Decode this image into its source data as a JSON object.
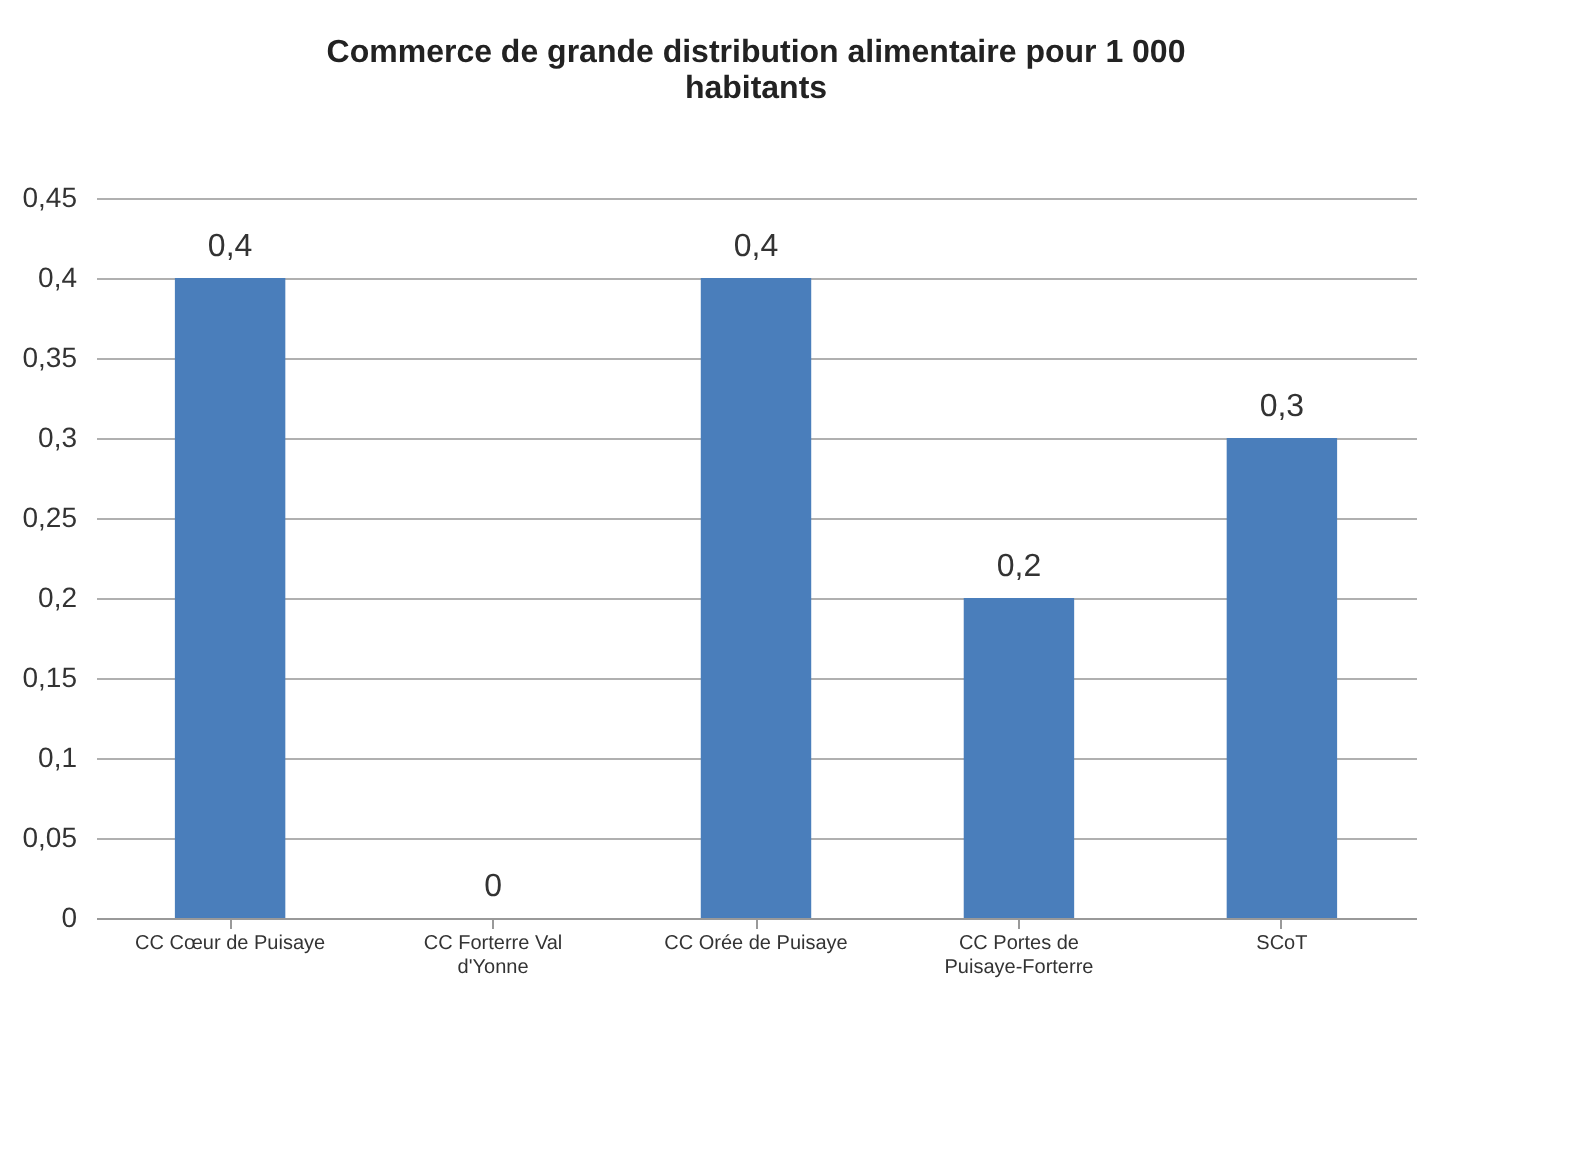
{
  "chart_data": {
    "type": "bar",
    "title": "Commerce de grande distribution alimentaire pour 1 000 habitants",
    "categories": [
      "CC Cœur de Puisaye",
      "CC Forterre Val d'Yonne",
      "CC Orée de Puisaye",
      "CC Portes de Puisaye-Forterre",
      "SCoT"
    ],
    "values": [
      0.4,
      0,
      0.4,
      0.2,
      0.3
    ],
    "value_labels": [
      "0,4",
      "0",
      "0,4",
      "0,2",
      "0,3"
    ],
    "color": "#4a7ebb",
    "ylim": [
      0,
      0.45
    ],
    "yticks": [
      0,
      {
        "value": 0.05,
        "label": "0,05"
      },
      {
        "value": 0.1,
        "label": "0,1"
      },
      {
        "value": 0.15,
        "label": "0,15"
      },
      {
        "value": 0.2,
        "label": "0,2"
      },
      {
        "value": 0.25,
        "label": "0,25"
      },
      {
        "value": 0.3,
        "label": "0,3"
      },
      {
        "value": 0.35,
        "label": "0,35"
      },
      {
        "value": 0.4,
        "label": "0,4"
      },
      {
        "value": 0.45,
        "label": "0,45"
      }
    ],
    "grid": "y"
  }
}
